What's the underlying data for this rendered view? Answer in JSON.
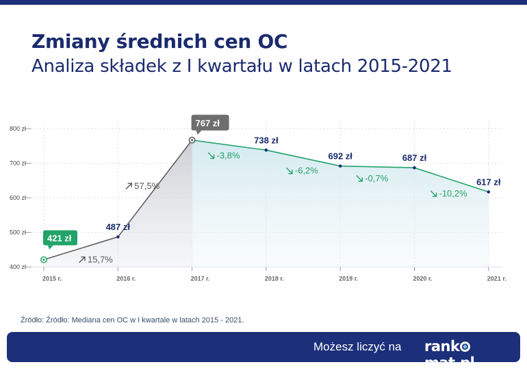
{
  "header": {
    "title": "Zmiany średnich cen OC",
    "subtitle": "Analiza składek z I kwartału w latach 2015-2021"
  },
  "source": "Źródło: Źródło: Mediana cen OC w I kwartale w latach 2015 - 2021.",
  "footer": {
    "tagline": "Możesz liczyć na",
    "brand_before": "rank",
    "brand_after": "mat.pl"
  },
  "colors": {
    "navy": "#1c2f7a",
    "green": "#22a36a",
    "gray": "#6b6b6b",
    "label_dark": "#1a2b6d"
  },
  "chart_data": {
    "type": "line",
    "x": [
      "2015 r.",
      "2016 r.",
      "2017 r.",
      "2018 r.",
      "2019 r.",
      "2020 r.",
      "2021 r."
    ],
    "values": [
      421,
      487,
      767,
      738,
      692,
      687,
      617
    ],
    "value_labels": [
      "421 zł",
      "487 zł",
      "767 zł",
      "738 zł",
      "692 zł",
      "687 zł",
      "617 zł"
    ],
    "ylim": [
      400,
      800
    ],
    "yticks": [
      400,
      500,
      600,
      700,
      800
    ],
    "ytick_labels": [
      "400 zł",
      "500 zł",
      "600 zł",
      "700 zł",
      "800 zł"
    ],
    "changes": [
      {
        "label": "15,7%",
        "direction": "up"
      },
      {
        "label": "57,5%",
        "direction": "up"
      },
      {
        "label": "-3,8%",
        "direction": "down"
      },
      {
        "label": "-6,2%",
        "direction": "down"
      },
      {
        "label": "-0,7%",
        "direction": "down"
      },
      {
        "label": "-10,2%",
        "direction": "down"
      }
    ],
    "grid": true
  }
}
